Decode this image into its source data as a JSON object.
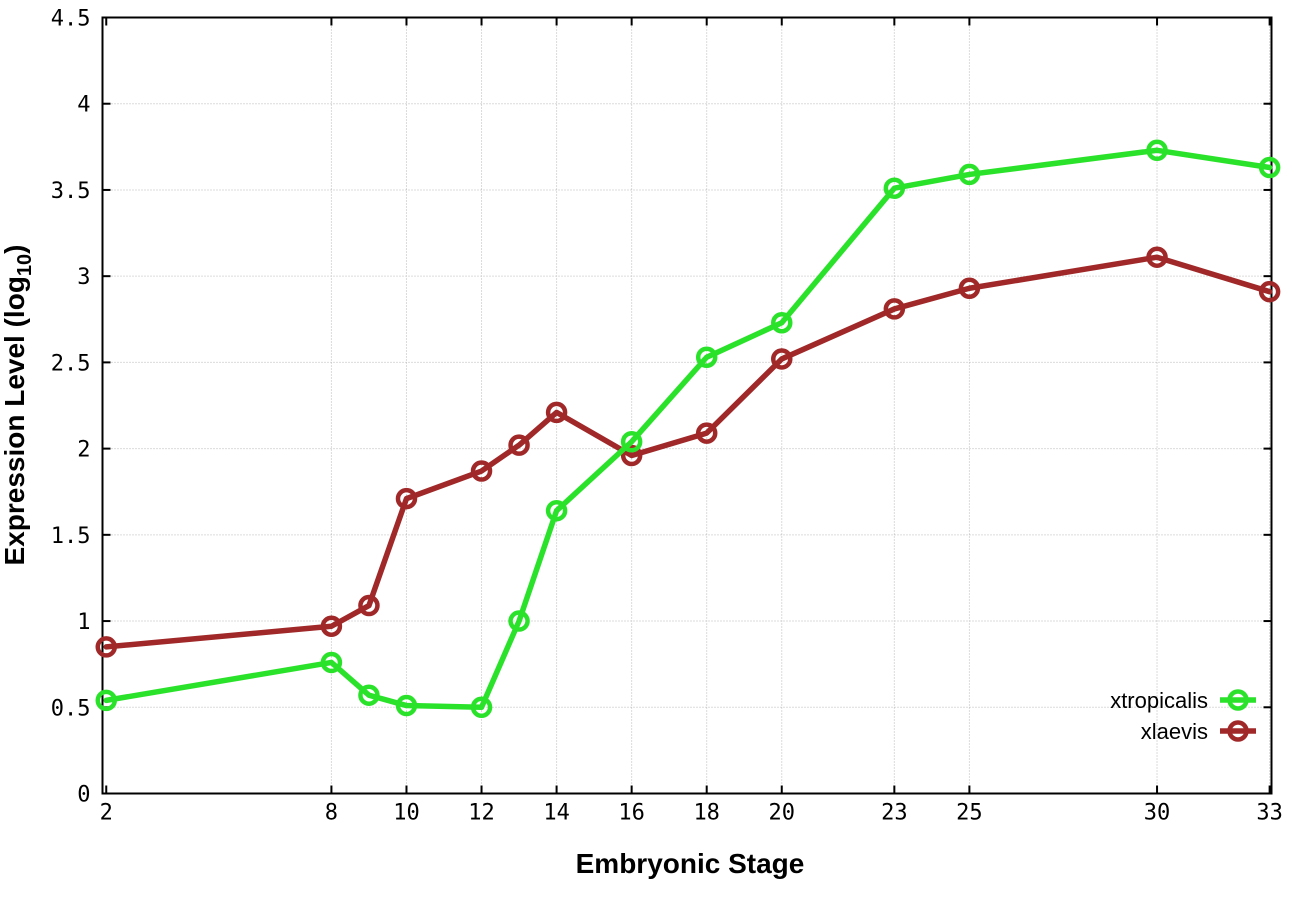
{
  "colors": {
    "xtropicalis": "#2be22b",
    "xlaevis": "#a02828",
    "grid": "#b8b8b8",
    "axis": "#000000",
    "background": "#ffffff"
  },
  "chart_data": {
    "type": "line",
    "title": "",
    "xlabel": "Embryonic Stage",
    "ylabel": "Expression Level (log10)",
    "ylabel_parts": {
      "prefix": "Expression Level (log",
      "sub": "10",
      "suffix": ")"
    },
    "x": [
      2,
      8,
      9,
      10,
      12,
      13,
      14,
      16,
      18,
      20,
      23,
      25,
      30,
      33
    ],
    "series": [
      {
        "name": "xtropicalis",
        "color": "#2be22b",
        "values": [
          0.54,
          0.76,
          0.57,
          0.51,
          0.5,
          1.0,
          1.64,
          2.04,
          2.53,
          2.73,
          3.51,
          3.59,
          3.73,
          3.63
        ]
      },
      {
        "name": "xlaevis",
        "color": "#a02828",
        "values": [
          0.85,
          0.97,
          1.09,
          1.71,
          1.87,
          2.02,
          2.21,
          1.96,
          2.09,
          2.52,
          2.81,
          2.93,
          3.11,
          2.91
        ]
      }
    ],
    "xticks": [
      2,
      8,
      10,
      12,
      14,
      16,
      18,
      20,
      23,
      25,
      30,
      33
    ],
    "yticks": [
      0,
      0.5,
      1,
      1.5,
      2,
      2.5,
      3,
      3.5,
      4,
      4.5
    ],
    "x_gridlines": [
      8,
      10,
      12,
      14,
      16,
      18,
      20,
      23,
      25,
      30,
      33
    ],
    "y_gridlines": [
      0.5,
      1,
      1.5,
      2,
      2.5,
      3,
      3.5,
      4
    ],
    "xlim": [
      1.9,
      33.05
    ],
    "ylim": [
      0,
      4.5
    ],
    "grid": true,
    "marker": "open-circle",
    "legend_position": "bottom-right"
  }
}
